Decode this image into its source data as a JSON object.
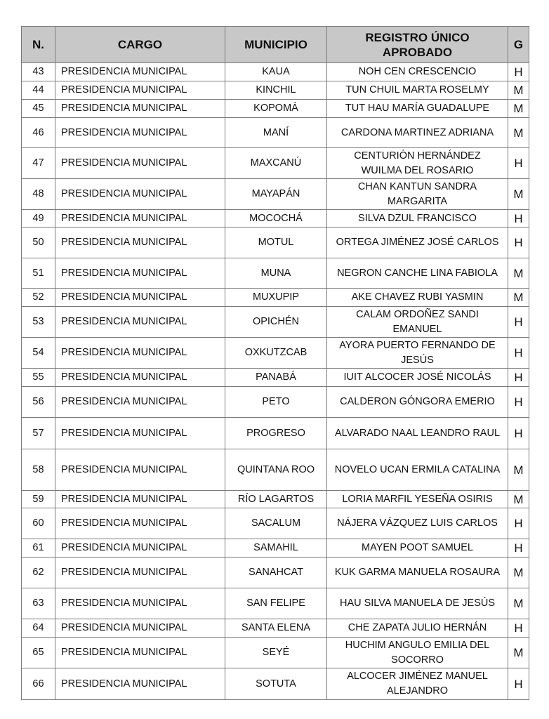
{
  "headers": {
    "n": "N.",
    "cargo": "CARGO",
    "municipio": "MUNICIPIO",
    "registro": "REGISTRO ÚNICO APROBADO",
    "g": "G"
  },
  "rows": [
    {
      "n": "43",
      "cargo": "PRESIDENCIA MUNICIPAL",
      "municipio": "KAUA",
      "registro": "NOH CEN CRESCENCIO",
      "g": "H"
    },
    {
      "n": "44",
      "cargo": "PRESIDENCIA MUNICIPAL",
      "municipio": "KINCHIL",
      "registro": "TUN CHUIL MARTA ROSELMY",
      "g": "M"
    },
    {
      "n": "45",
      "cargo": "PRESIDENCIA MUNICIPAL",
      "municipio": "KOPOMÁ",
      "registro": "TUT HAU MARÍA GUADALUPE",
      "g": "M"
    },
    {
      "n": "46",
      "cargo": "PRESIDENCIA MUNICIPAL",
      "municipio": "MANÍ",
      "registro": "CARDONA MARTINEZ ADRIANA",
      "g": "M"
    },
    {
      "n": "47",
      "cargo": "PRESIDENCIA MUNICIPAL",
      "municipio": "MAXCANÚ",
      "registro": "CENTURIÓN HERNÁNDEZ WUILMA DEL ROSARIO",
      "g": "H"
    },
    {
      "n": "48",
      "cargo": "PRESIDENCIA MUNICIPAL",
      "municipio": "MAYAPÁN",
      "registro": "CHAN KANTUN SANDRA MARGARITA",
      "g": "M"
    },
    {
      "n": "49",
      "cargo": "PRESIDENCIA MUNICIPAL",
      "municipio": "MOCOCHÁ",
      "registro": "SILVA DZUL FRANCISCO",
      "g": "H"
    },
    {
      "n": "50",
      "cargo": "PRESIDENCIA MUNICIPAL",
      "municipio": "MOTUL",
      "registro": "ORTEGA JIMÉNEZ JOSÉ CARLOS",
      "g": "H"
    },
    {
      "n": "51",
      "cargo": "PRESIDENCIA MUNICIPAL",
      "municipio": "MUNA",
      "registro": "NEGRON CANCHE LINA FABIOLA",
      "g": "M"
    },
    {
      "n": "52",
      "cargo": "PRESIDENCIA MUNICIPAL",
      "municipio": "MUXUPIP",
      "registro": "AKE CHAVEZ RUBI YASMIN",
      "g": "M"
    },
    {
      "n": "53",
      "cargo": "PRESIDENCIA MUNICIPAL",
      "municipio": "OPICHÉN",
      "registro": "CALAM ORDOÑEZ SANDI EMANUEL",
      "g": "H"
    },
    {
      "n": "54",
      "cargo": "PRESIDENCIA MUNICIPAL",
      "municipio": "OXKUTZCAB",
      "registro": "AYORA PUERTO FERNANDO DE JESÚS",
      "g": "H"
    },
    {
      "n": "55",
      "cargo": "PRESIDENCIA MUNICIPAL",
      "municipio": "PANABÁ",
      "registro": "IUIT ALCOCER JOSÉ NICOLÁS",
      "g": "H"
    },
    {
      "n": "56",
      "cargo": "PRESIDENCIA MUNICIPAL",
      "municipio": "PETO",
      "registro": "CALDERON GÓNGORA EMERIO",
      "g": "H"
    },
    {
      "n": "57",
      "cargo": "PRESIDENCIA MUNICIPAL",
      "municipio": "PROGRESO",
      "registro": "ALVARADO NAAL LEANDRO RAUL",
      "g": "H"
    },
    {
      "n": "58",
      "cargo": "PRESIDENCIA MUNICIPAL",
      "municipio": "QUINTANA ROO",
      "registro": "NOVELO UCAN ERMILA CATALINA",
      "g": "M"
    },
    {
      "n": "59",
      "cargo": "PRESIDENCIA MUNICIPAL",
      "municipio": "RÍO LAGARTOS",
      "registro": "LORIA MARFIL YESEÑA OSIRIS",
      "g": "M"
    },
    {
      "n": "60",
      "cargo": "PRESIDENCIA MUNICIPAL",
      "municipio": "SACALUM",
      "registro": "NÁJERA VÁZQUEZ LUIS CARLOS",
      "g": "H"
    },
    {
      "n": "61",
      "cargo": "PRESIDENCIA MUNICIPAL",
      "municipio": "SAMAHIL",
      "registro": "MAYEN POOT SAMUEL",
      "g": "H"
    },
    {
      "n": "62",
      "cargo": "PRESIDENCIA MUNICIPAL",
      "municipio": "SANAHCAT",
      "registro": "KUK GARMA MANUELA ROSAURA",
      "g": "M"
    },
    {
      "n": "63",
      "cargo": "PRESIDENCIA MUNICIPAL",
      "municipio": "SAN FELIPE",
      "registro": "HAU SILVA MANUELA DE JESÚS",
      "g": "M"
    },
    {
      "n": "64",
      "cargo": "PRESIDENCIA MUNICIPAL",
      "municipio": "SANTA ELENA",
      "registro": "CHE ZAPATA JULIO HERNÁN",
      "g": "H"
    },
    {
      "n": "65",
      "cargo": "PRESIDENCIA MUNICIPAL",
      "municipio": "SEYÉ",
      "registro": "HUCHIM ANGULO EMILIA DEL SOCORRO",
      "g": "M"
    },
    {
      "n": "66",
      "cargo": "PRESIDENCIA MUNICIPAL",
      "municipio": "SOTUTA",
      "registro": "ALCOCER JIMÉNEZ MANUEL ALEJANDRO",
      "g": "H"
    }
  ]
}
